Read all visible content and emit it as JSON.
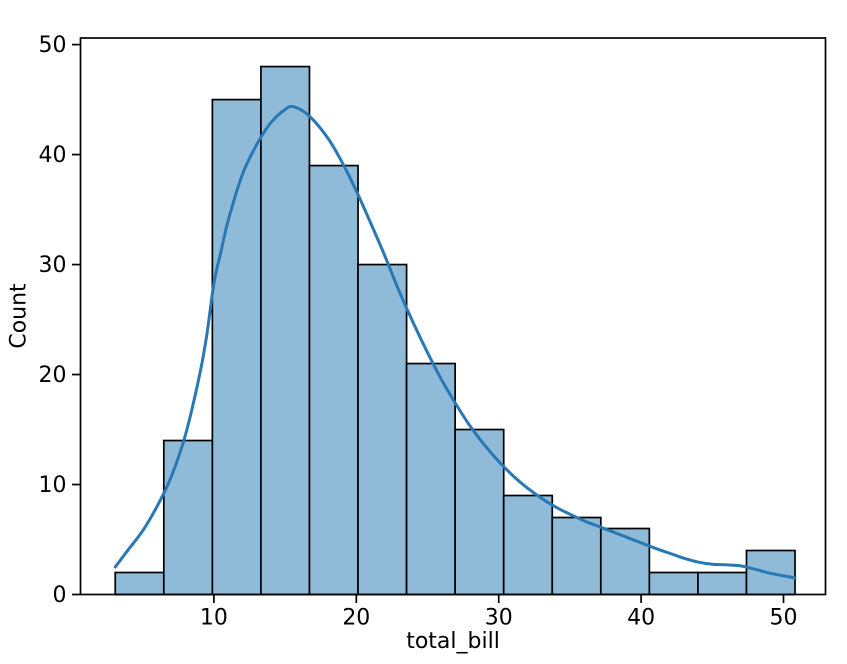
{
  "figure": {
    "background": "#ffffff"
  },
  "chart_data": {
    "type": "bar",
    "subtype": "histogram-with-kde",
    "title": "",
    "xlabel": "total_bill",
    "ylabel": "Count",
    "grid": false,
    "legend": null,
    "xlim": [
      0.63,
      52.95
    ],
    "ylim": [
      0,
      50.6
    ],
    "xticks": [
      10,
      20,
      30,
      40,
      50
    ],
    "yticks": [
      0,
      10,
      20,
      30,
      40,
      50
    ],
    "bin_edges": [
      3.07,
      6.48,
      9.89,
      13.3,
      16.71,
      20.12,
      23.53,
      26.94,
      30.35,
      33.76,
      37.17,
      40.58,
      43.99,
      47.4,
      50.81
    ],
    "counts": [
      2,
      14,
      45,
      48,
      39,
      30,
      21,
      15,
      9,
      7,
      6,
      2,
      2,
      4
    ],
    "total_observations": 244,
    "kde": {
      "x": [
        3.07,
        4,
        5,
        6,
        7,
        8,
        9,
        9.5,
        10,
        10.5,
        11,
        12,
        13,
        14,
        15,
        15.6,
        16.7,
        18,
        19,
        20,
        21,
        22,
        23,
        24,
        25,
        26,
        27,
        28,
        29,
        30,
        31,
        32,
        33,
        34,
        35,
        36,
        37,
        38,
        39,
        40,
        41,
        42,
        43,
        44,
        45,
        46,
        47,
        48,
        49,
        50,
        50.81
      ],
      "y": [
        2.5,
        4.1,
        5.8,
        8.0,
        10.7,
        14.5,
        20.0,
        23.6,
        28.3,
        31.2,
        34.0,
        38.2,
        40.9,
        42.9,
        44.1,
        44.35,
        43.5,
        41.5,
        39.3,
        36.7,
        33.8,
        30.8,
        27.6,
        24.7,
        22.0,
        19.5,
        17.3,
        15.3,
        13.6,
        12.1,
        10.8,
        9.7,
        8.75,
        7.95,
        7.3,
        6.7,
        6.2,
        5.7,
        5.2,
        4.7,
        4.2,
        3.75,
        3.3,
        2.95,
        2.75,
        2.7,
        2.6,
        2.3,
        1.95,
        1.7,
        1.5
      ],
      "peak_x": 15.6,
      "peak_y": 44.35
    },
    "colors": {
      "bar_fill": "#8fbbd9",
      "bar_edge": "#000000",
      "kde_line": "#2878b4",
      "spine": "#000000",
      "tick_label": "#000000"
    }
  }
}
